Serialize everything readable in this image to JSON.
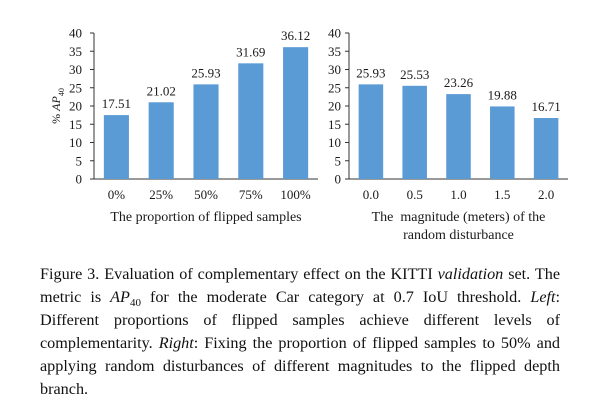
{
  "chart_data": [
    {
      "type": "bar",
      "ylabel_prefix": "%",
      "ylabel_metric": "AP",
      "ylabel_sub": "40",
      "xlabel": [
        "The proportion of flipped samples"
      ],
      "categories": [
        "0%",
        "25%",
        "50%",
        "75%",
        "100%"
      ],
      "values": [
        17.51,
        21.02,
        25.93,
        31.69,
        36.12
      ],
      "data_labels": [
        "17.51",
        "21.02",
        "25.93",
        "31.69",
        "36.12"
      ],
      "ylim": [
        0,
        40
      ],
      "yticks": [
        "0",
        "5",
        "10",
        "15",
        "20",
        "25",
        "30",
        "35",
        "40"
      ],
      "grid": false,
      "color": "#5b9bd5"
    },
    {
      "type": "bar",
      "xlabel": [
        "The  magnitude (meters) of the",
        "random disturbance"
      ],
      "categories": [
        "0.0",
        "0.5",
        "1.0",
        "1.5",
        "2.0"
      ],
      "values": [
        25.93,
        25.53,
        23.26,
        19.88,
        16.71
      ],
      "data_labels": [
        "25.93",
        "25.53",
        "23.26",
        "19.88",
        "16.71"
      ],
      "ylim": [
        0,
        40
      ],
      "yticks": [
        "0",
        "5",
        "10",
        "15",
        "20",
        "25",
        "30",
        "35",
        "40"
      ],
      "grid": false,
      "color": "#5b9bd5"
    }
  ],
  "caption": {
    "figure_label": "Figure 3.",
    "text_1": " Evaluation of complementary effect on the KITTI ",
    "validation_it": "validation",
    "text_2": " set.  The metric is ",
    "metric": "AP",
    "metric_sub": "40",
    "text_3": " for the moderate Car category at 0.7 IoU threshold. ",
    "left_it": "Left",
    "text_4": ": Different proportions of flipped samples achieve different levels of complementarity. ",
    "right_it": "Right",
    "text_5": ": Fixing the proportion of flipped samples to 50% and applying random disturbances of different magnitudes to the flipped depth branch."
  }
}
